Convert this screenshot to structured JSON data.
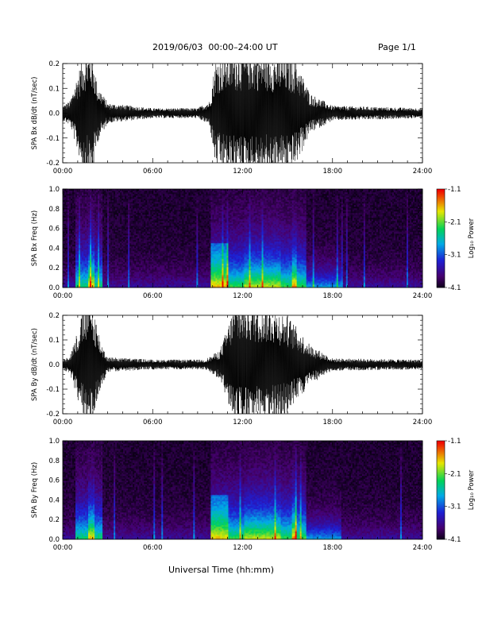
{
  "header": {
    "title": "2019/06/03  00:00–24:00 UT",
    "page": "Page 1/1"
  },
  "footer": {
    "xlabel": "Universal Time (hh:mm)"
  },
  "chart_data": [
    {
      "type": "line",
      "ylabel": "SPA Bx dB/dt (nT/sec)",
      "xlim_hours": [
        0,
        24
      ],
      "ylim": [
        -0.2,
        0.2
      ],
      "yticks": [
        "-0.2",
        "-0.1",
        "0.0",
        "0.1",
        "0.2"
      ],
      "xticks": [
        "00:00",
        "06:00",
        "12:00",
        "18:00",
        "24:00"
      ],
      "envelope": [
        {
          "t": 0.0,
          "amp": 0.03
        },
        {
          "t": 0.5,
          "amp": 0.05
        },
        {
          "t": 1.0,
          "amp": 0.16
        },
        {
          "t": 1.5,
          "amp": 0.25
        },
        {
          "t": 2.0,
          "amp": 0.25
        },
        {
          "t": 2.3,
          "amp": 0.12
        },
        {
          "t": 3.0,
          "amp": 0.04
        },
        {
          "t": 6.0,
          "amp": 0.02
        },
        {
          "t": 9.0,
          "amp": 0.02
        },
        {
          "t": 9.8,
          "amp": 0.05
        },
        {
          "t": 10.2,
          "amp": 0.22
        },
        {
          "t": 11.5,
          "amp": 0.25
        },
        {
          "t": 13.0,
          "amp": 0.25
        },
        {
          "t": 15.5,
          "amp": 0.22
        },
        {
          "t": 16.5,
          "amp": 0.08
        },
        {
          "t": 18.0,
          "amp": 0.03
        },
        {
          "t": 24.0,
          "amp": 0.02
        }
      ]
    },
    {
      "type": "heatmap",
      "ylabel": "SPA Bx Freq (Hz)",
      "xlim_hours": [
        0,
        24
      ],
      "ylim": [
        0,
        1.0
      ],
      "yticks": [
        "0.0",
        "0.2",
        "0.4",
        "0.6",
        "0.8",
        "1.0"
      ],
      "xticks": [
        "00:00",
        "06:00",
        "12:00",
        "18:00",
        "24:00"
      ],
      "colorbar": {
        "label": "Log₁₀ Power",
        "range": [
          -4.1,
          -1.1
        ],
        "ticks": [
          "-1.1",
          "-2.1",
          "-3.1",
          "-4.1"
        ]
      }
    },
    {
      "type": "line",
      "ylabel": "SPA By dB/dt (nT/sec)",
      "xlim_hours": [
        0,
        24
      ],
      "ylim": [
        -0.2,
        0.2
      ],
      "yticks": [
        "-0.2",
        "-0.1",
        "0.0",
        "0.1",
        "0.2"
      ],
      "xticks": [
        "00:00",
        "06:00",
        "12:00",
        "18:00",
        "24:00"
      ],
      "envelope": [
        {
          "t": 0.0,
          "amp": 0.02
        },
        {
          "t": 0.5,
          "amp": 0.04
        },
        {
          "t": 1.0,
          "amp": 0.14
        },
        {
          "t": 1.5,
          "amp": 0.25
        },
        {
          "t": 2.0,
          "amp": 0.25
        },
        {
          "t": 2.5,
          "amp": 0.1
        },
        {
          "t": 3.0,
          "amp": 0.03
        },
        {
          "t": 6.0,
          "amp": 0.02
        },
        {
          "t": 9.5,
          "amp": 0.02
        },
        {
          "t": 10.5,
          "amp": 0.06
        },
        {
          "t": 11.5,
          "amp": 0.25
        },
        {
          "t": 13.5,
          "amp": 0.25
        },
        {
          "t": 15.0,
          "amp": 0.2
        },
        {
          "t": 16.5,
          "amp": 0.08
        },
        {
          "t": 18.0,
          "amp": 0.025
        },
        {
          "t": 24.0,
          "amp": 0.02
        }
      ]
    },
    {
      "type": "heatmap",
      "ylabel": "SPA By Freq (Hz)",
      "xlim_hours": [
        0,
        24
      ],
      "ylim": [
        0,
        1.0
      ],
      "yticks": [
        "0.0",
        "0.2",
        "0.4",
        "0.6",
        "0.8",
        "1.0"
      ],
      "xticks": [
        "00:00",
        "06:00",
        "12:00",
        "18:00",
        "24:00"
      ],
      "colorbar": {
        "label": "Log₁₀ Power",
        "range": [
          -4.1,
          -1.1
        ],
        "ticks": [
          "-1.1",
          "-2.1",
          "-3.1",
          "-4.1"
        ]
      }
    }
  ]
}
